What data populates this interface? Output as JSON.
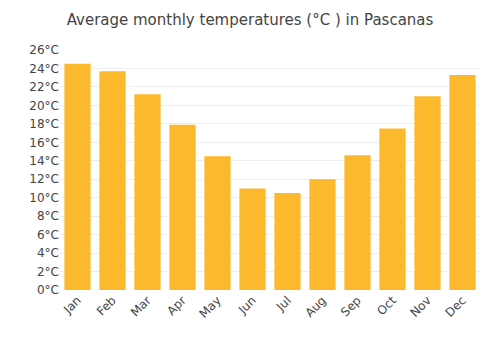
{
  "chart_data": {
    "type": "bar",
    "title": "Average monthly temperatures (°C ) in Pascanas",
    "categories": [
      "Jan",
      "Feb",
      "Mar",
      "Apr",
      "May",
      "Jun",
      "Jul",
      "Aug",
      "Sep",
      "Oct",
      "Nov",
      "Dec"
    ],
    "values": [
      24.5,
      23.7,
      21.2,
      17.9,
      14.5,
      11.0,
      10.5,
      12.0,
      14.6,
      17.5,
      21.0,
      23.3
    ],
    "color": "#FDB92E",
    "ylim": [
      0,
      26
    ],
    "yticks": [
      {
        "value": 0,
        "label": "0°C"
      },
      {
        "value": 2,
        "label": "2°C"
      },
      {
        "value": 4,
        "label": "4°C"
      },
      {
        "value": 6,
        "label": "6°C"
      },
      {
        "value": 8,
        "label": "8°C"
      },
      {
        "value": 10,
        "label": "10°C"
      },
      {
        "value": 12,
        "label": "12°C"
      },
      {
        "value": 14,
        "label": "14°C"
      },
      {
        "value": 16,
        "label": "16°C"
      },
      {
        "value": 18,
        "label": "18°C"
      },
      {
        "value": 20,
        "label": "20°C"
      },
      {
        "value": 22,
        "label": "22°C"
      },
      {
        "value": 24,
        "label": "24°C"
      },
      {
        "value": 26,
        "label": "26°C"
      }
    ],
    "grid": true
  }
}
